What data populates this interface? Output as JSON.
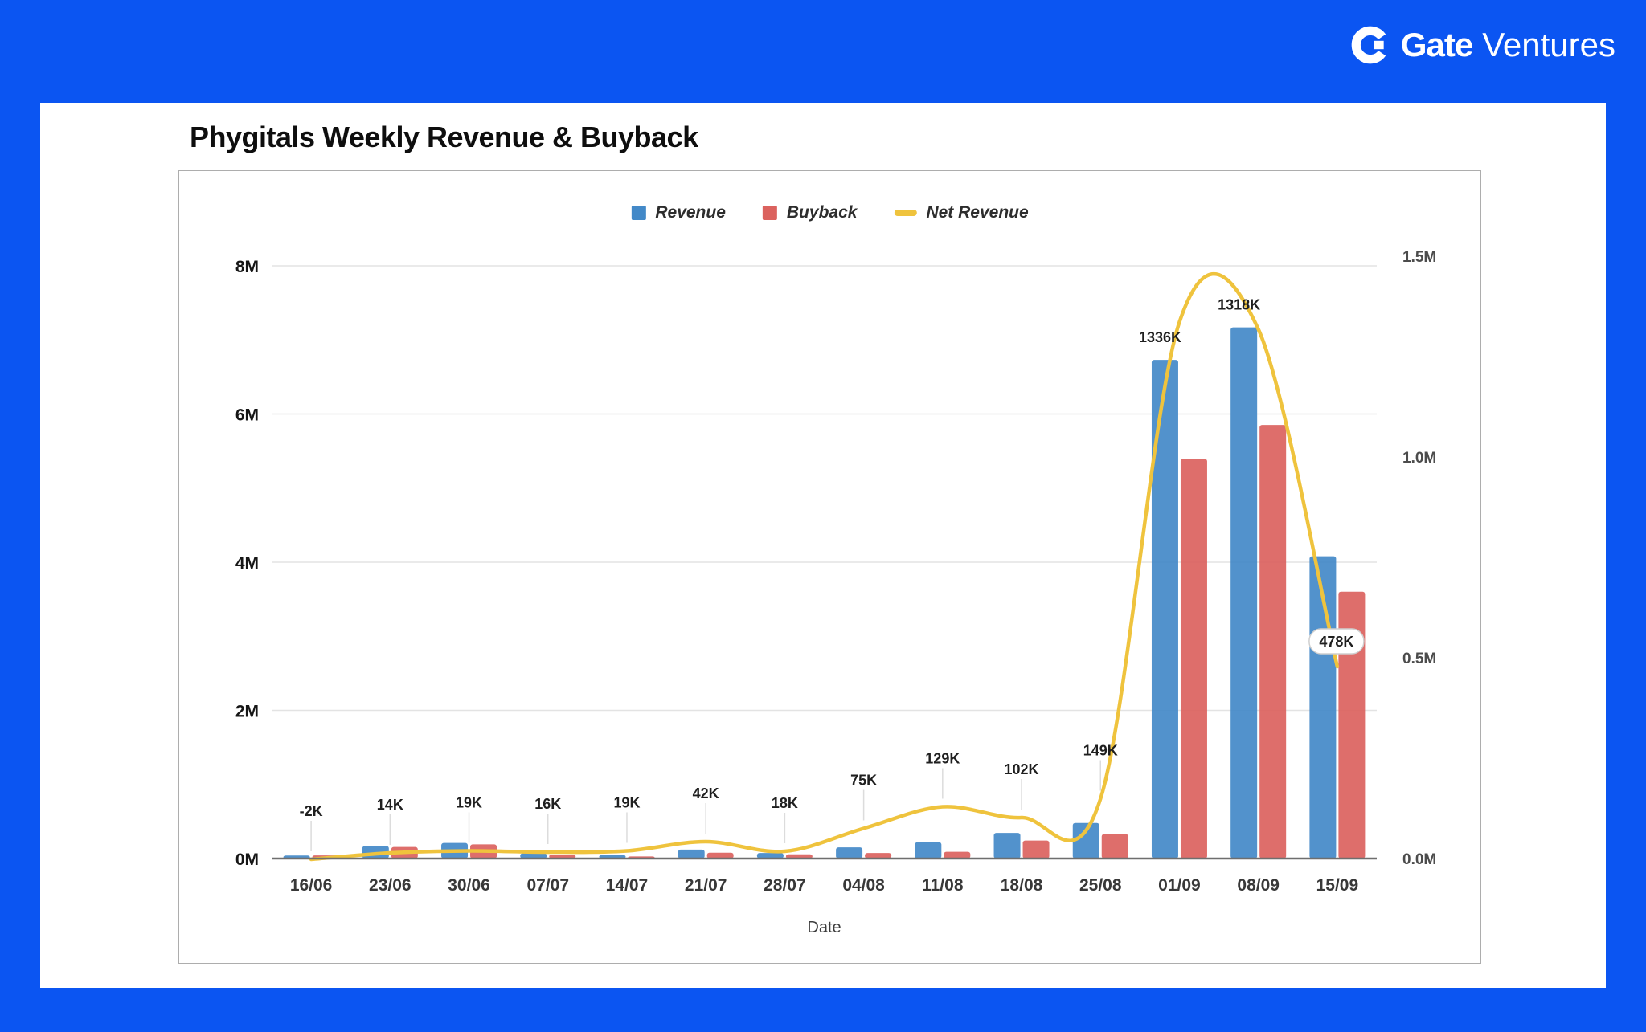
{
  "brand": {
    "logo_icon": "gate-g-icon",
    "name_bold": "Gate",
    "name_light": "Ventures"
  },
  "colors": {
    "frame_blue": "#0B55F2",
    "card_white": "#FFFFFF",
    "revenue_blue": "#4389C8",
    "buyback_red": "#DB625E",
    "net_revenue_yellow": "#EFC33D",
    "grid_gray": "#E3E3E3",
    "axis_gray": "#6E6E6E",
    "leader_gray": "#DCDCDC",
    "badge_border": "#CFCFCF"
  },
  "chart_data": {
    "type": "bar",
    "subtype": "grouped-bars-with-smoothed-line",
    "title": "Phygitals Weekly Revenue & Buyback",
    "xlabel": "Date",
    "legend_position": "top",
    "grid": true,
    "categories": [
      "16/06",
      "23/06",
      "30/06",
      "07/07",
      "14/07",
      "21/07",
      "28/07",
      "04/08",
      "11/08",
      "18/08",
      "25/08",
      "01/09",
      "08/09",
      "15/09"
    ],
    "left_axis": {
      "ticks": [
        "0M",
        "2M",
        "4M",
        "6M",
        "8M"
      ],
      "tick_values_k": [
        0,
        2000,
        4000,
        6000,
        8000
      ],
      "max_k": 8000
    },
    "right_axis": {
      "ticks": [
        "0.0M",
        "0.5M",
        "1.0M",
        "1.5M"
      ],
      "tick_values_k": [
        0,
        500,
        1000,
        1500
      ],
      "max_k": 1500
    },
    "series": [
      {
        "name": "Revenue",
        "type": "bar",
        "axis": "left",
        "color": "#4389C8",
        "values_k": [
          40,
          170,
          210,
          70,
          48,
          120,
          75,
          150,
          220,
          345,
          480,
          6730,
          7170,
          4080
        ]
      },
      {
        "name": "Buyback",
        "type": "bar",
        "axis": "left",
        "color": "#DB625E",
        "values_k": [
          42,
          156,
          191,
          54,
          29,
          78,
          57,
          75,
          91,
          243,
          331,
          5394,
          5852,
          3602
        ]
      },
      {
        "name": "Net Revenue",
        "type": "line",
        "axis": "right",
        "color": "#EFC33D",
        "values_k": [
          -2,
          14,
          19,
          16,
          19,
          42,
          18,
          75,
          129,
          102,
          149,
          1336,
          1318,
          478
        ],
        "point_labels": [
          "-2K",
          "14K",
          "19K",
          "16K",
          "19K",
          "42K",
          "18K",
          "75K",
          "129K",
          "102K",
          "149K",
          "1336K",
          "1318K",
          "478K"
        ],
        "badge_label_index": 13
      }
    ]
  }
}
